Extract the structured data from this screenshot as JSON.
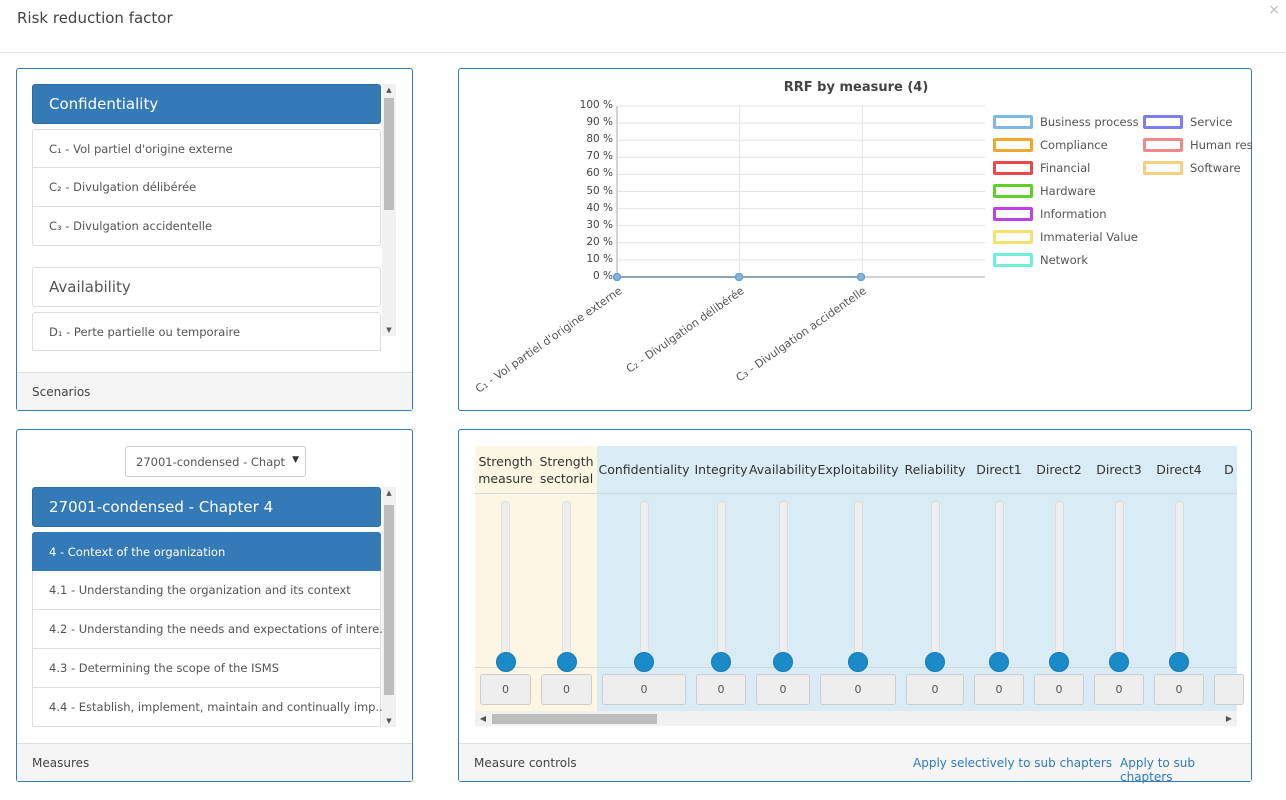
{
  "dialog": {
    "title": "Risk reduction factor",
    "close_label": "×"
  },
  "scenarios": {
    "groups": [
      {
        "label": "Confidentiality",
        "items": [
          "C₁ - Vol partiel d'origine externe",
          "C₂ - Divulgation délibérée",
          "C₃ - Divulgation accidentelle"
        ]
      },
      {
        "label": "Availability",
        "items": [
          "D₁ - Perte partielle ou temporaire"
        ]
      }
    ],
    "footer": "Scenarios"
  },
  "chart_data": {
    "type": "line",
    "title": "RRF by measure (4)",
    "categories": [
      "C₁ - Vol partiel d'origine externe",
      "C₂ - Divulgation délibérée",
      "C₃ - Divulgation accidentelle"
    ],
    "y_ticks": [
      "100 %",
      "90 %",
      "80 %",
      "70 %",
      "60 %",
      "50 %",
      "40 %",
      "30 %",
      "20 %",
      "10 %",
      "0 %"
    ],
    "ylim": [
      0,
      100
    ],
    "series": [
      {
        "name": "Business process",
        "color": "#7fb8e6",
        "values": [
          0,
          0,
          0
        ]
      },
      {
        "name": "Compliance",
        "color": "#f0a830",
        "values": [
          0,
          0,
          0
        ]
      },
      {
        "name": "Financial",
        "color": "#e84a4a",
        "values": [
          0,
          0,
          0
        ]
      },
      {
        "name": "Hardware",
        "color": "#5fcf2a",
        "values": [
          0,
          0,
          0
        ]
      },
      {
        "name": "Information",
        "color": "#c040e8",
        "values": [
          0,
          0,
          0
        ]
      },
      {
        "name": "Immaterial Value",
        "color": "#f5e070",
        "values": [
          0,
          0,
          0
        ]
      },
      {
        "name": "Network",
        "color": "#6ff0d8",
        "values": [
          0,
          0,
          0
        ]
      },
      {
        "name": "Service",
        "color": "#7e7ef0",
        "values": [
          0,
          0,
          0
        ]
      },
      {
        "name": "Human res",
        "color": "#f08a8a",
        "values": [
          0,
          0,
          0
        ]
      },
      {
        "name": "Software",
        "color": "#f5d080",
        "values": [
          0,
          0,
          0
        ]
      }
    ],
    "legend_position": "right",
    "grid": true
  },
  "measures": {
    "select_value": "27001-condensed - Chapt",
    "group_label": "27001-condensed - Chapter 4",
    "items": [
      "4 - Context of the organization",
      "4.1 - Understanding the organization and its context",
      "4.2 - Understanding the needs and expectations of intere...",
      "4.3 - Determining the scope of the ISMS",
      "4.4 - Establish, implement, maintain and continually imp..."
    ],
    "selected_index": 0,
    "footer": "Measures"
  },
  "controls": {
    "columns": [
      {
        "label": "Strength measure",
        "value": "0"
      },
      {
        "label": "Strength sectorial",
        "value": "0"
      },
      {
        "label": "Confidentiality",
        "value": "0"
      },
      {
        "label": "Integrity",
        "value": "0"
      },
      {
        "label": "Availability",
        "value": "0"
      },
      {
        "label": "Exploitability",
        "value": "0"
      },
      {
        "label": "Reliability",
        "value": "0"
      },
      {
        "label": "Direct1",
        "value": "0"
      },
      {
        "label": "Direct2",
        "value": "0"
      },
      {
        "label": "Direct3",
        "value": "0"
      },
      {
        "label": "Direct4",
        "value": "0"
      },
      {
        "label": "D",
        "value": ""
      }
    ],
    "footer": "Measure controls",
    "apply_selectively_label": "Apply selectively to sub chapters",
    "apply_label": "Apply to sub chapters"
  }
}
